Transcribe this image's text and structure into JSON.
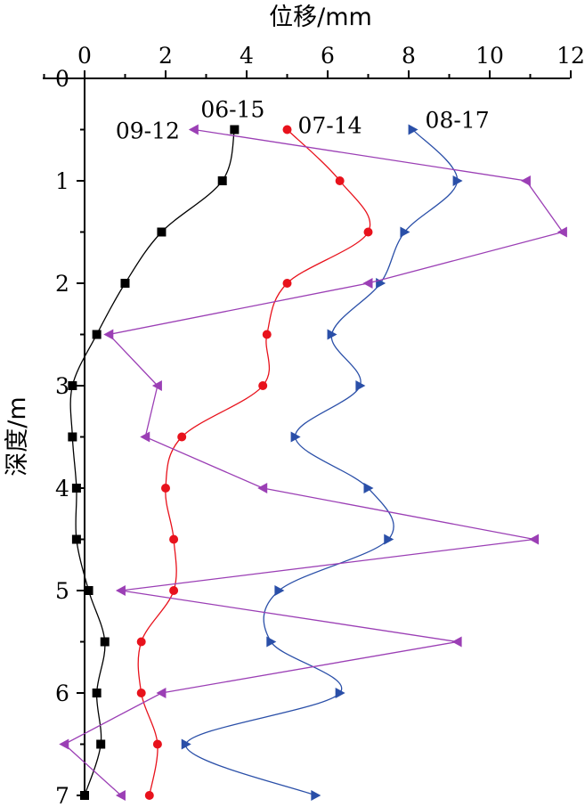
{
  "chart_data": {
    "type": "line",
    "xlabel": "位移/mm",
    "ylabel": "深度/m",
    "xlim": [
      -0.6,
      12
    ],
    "ylim": [
      0,
      7
    ],
    "x_axis_position": "top",
    "y_inverted": true,
    "grid": false,
    "xticks": [
      "0",
      "2",
      "4",
      "6",
      "8",
      "10",
      "12"
    ],
    "yticks": [
      "0",
      "1",
      "2",
      "3",
      "4",
      "5",
      "6",
      "7"
    ],
    "series": [
      {
        "name": "06-15",
        "color": "#000000",
        "marker": "square",
        "points": [
          [
            3.7,
            0.5
          ],
          [
            3.4,
            1.0
          ],
          [
            1.9,
            1.5
          ],
          [
            1.0,
            2.0
          ],
          [
            0.3,
            2.5
          ],
          [
            -0.3,
            3.0
          ],
          [
            -0.3,
            3.5
          ],
          [
            -0.2,
            4.0
          ],
          [
            -0.2,
            4.5
          ],
          [
            0.1,
            5.0
          ],
          [
            0.5,
            5.5
          ],
          [
            0.3,
            6.0
          ],
          [
            0.4,
            6.5
          ],
          [
            0.0,
            7.0
          ]
        ]
      },
      {
        "name": "07-14",
        "color": "#e8121c",
        "marker": "circle",
        "points": [
          [
            5.0,
            0.5
          ],
          [
            6.3,
            1.0
          ],
          [
            7.0,
            1.5
          ],
          [
            5.0,
            2.0
          ],
          [
            4.5,
            2.5
          ],
          [
            4.4,
            3.0
          ],
          [
            2.4,
            3.5
          ],
          [
            2.0,
            4.0
          ],
          [
            2.2,
            4.5
          ],
          [
            2.2,
            5.0
          ],
          [
            1.4,
            5.5
          ],
          [
            1.4,
            6.0
          ],
          [
            1.8,
            6.5
          ],
          [
            1.6,
            7.0
          ]
        ]
      },
      {
        "name": "08-17",
        "color": "#2a4fa8",
        "marker": "triangle-right",
        "points": [
          [
            8.1,
            0.5
          ],
          [
            9.2,
            1.0
          ],
          [
            7.9,
            1.5
          ],
          [
            7.3,
            2.0
          ],
          [
            6.1,
            2.5
          ],
          [
            6.8,
            3.0
          ],
          [
            5.2,
            3.5
          ],
          [
            7.0,
            4.0
          ],
          [
            7.5,
            4.5
          ],
          [
            4.8,
            5.0
          ],
          [
            4.6,
            5.5
          ],
          [
            6.3,
            6.0
          ],
          [
            2.5,
            6.5
          ],
          [
            5.7,
            7.0
          ]
        ]
      },
      {
        "name": "09-12",
        "color": "#9b3fb5",
        "marker": "triangle-left",
        "points": [
          [
            2.7,
            0.5
          ],
          [
            10.9,
            1.0
          ],
          [
            11.8,
            1.5
          ],
          [
            7.0,
            2.0
          ],
          [
            0.6,
            2.5
          ],
          [
            1.8,
            3.0
          ],
          [
            1.5,
            3.5
          ],
          [
            4.4,
            4.0
          ],
          [
            11.1,
            4.5
          ],
          [
            0.9,
            5.0
          ],
          [
            9.2,
            5.5
          ],
          [
            1.9,
            6.0
          ],
          [
            -0.5,
            6.5
          ],
          [
            0.9,
            7.0
          ]
        ]
      }
    ],
    "series_label_positions": "near top of each curve"
  }
}
